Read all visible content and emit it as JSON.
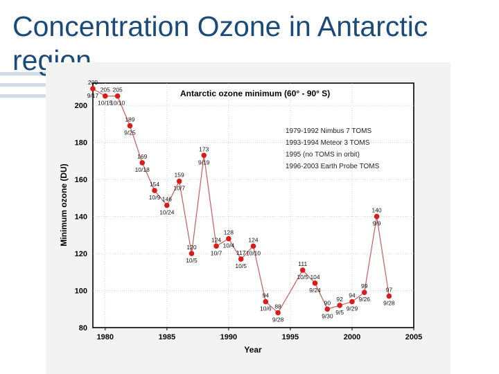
{
  "slide": {
    "title": "Concentration Ozone in Antarctic region"
  },
  "colors": {
    "title": "#1a4a7a",
    "marker": "#d81b1b",
    "line": "#d05a5a",
    "axis": "#000000",
    "grid": "#bbbbbb"
  },
  "chart_data": {
    "type": "line",
    "title": "Antarctic ozone minimum (60° - 90° S)",
    "xlabel": "Year",
    "ylabel": "Minimum ozone (DU)",
    "xlim": [
      1979,
      2005
    ],
    "ylim": [
      80,
      212
    ],
    "xticks": [
      1980,
      1985,
      1990,
      1995,
      2000,
      2005
    ],
    "yticks": [
      80,
      100,
      120,
      140,
      160,
      180,
      200
    ],
    "grid": true,
    "legend": [
      "1979-1992 Nimbus 7 TOMS",
      "1993-1994 Meteor 3 TOMS",
      "1995 (no TOMS in orbit)",
      "1996-2003 Earth Probe TOMS"
    ],
    "points": [
      {
        "year": 1979,
        "value": 209,
        "label": "209",
        "date": "9/17"
      },
      {
        "year": 1980,
        "value": 205,
        "label": "205",
        "date": "10/15"
      },
      {
        "year": 1981,
        "value": 205,
        "label": "205",
        "date": "10/10"
      },
      {
        "year": 1982,
        "value": 189,
        "label": "189",
        "date": "9/25"
      },
      {
        "year": 1983,
        "value": 169,
        "label": "169",
        "date": "10/18"
      },
      {
        "year": 1984,
        "value": 154,
        "label": "154",
        "date": "10/9"
      },
      {
        "year": 1985,
        "value": 146,
        "label": "146",
        "date": "10/24"
      },
      {
        "year": 1986,
        "value": 159,
        "label": "159",
        "date": "10/7"
      },
      {
        "year": 1987,
        "value": 120,
        "label": "120",
        "date": "10/5"
      },
      {
        "year": 1988,
        "value": 173,
        "label": "173",
        "date": "9/19"
      },
      {
        "year": 1989,
        "value": 124,
        "label": "124",
        "date": "10/7"
      },
      {
        "year": 1990,
        "value": 128,
        "label": "128",
        "date": "10/4"
      },
      {
        "year": 1991,
        "value": 117,
        "label": "117",
        "date": "10/5"
      },
      {
        "year": 1992,
        "value": 124,
        "label": "124",
        "date": "10/10"
      },
      {
        "year": 1993,
        "value": 94,
        "label": "94",
        "date": "10/6"
      },
      {
        "year": 1994,
        "value": 88,
        "label": "88",
        "date": "9/28"
      },
      {
        "year": 1996,
        "value": 111,
        "label": "111",
        "date": "10/5"
      },
      {
        "year": 1997,
        "value": 104,
        "label": "104",
        "date": "9/24"
      },
      {
        "year": 1998,
        "value": 90,
        "label": "90",
        "date": "9/30"
      },
      {
        "year": 1999,
        "value": 92,
        "label": "92",
        "date": "9/5"
      },
      {
        "year": 2000,
        "value": 94,
        "label": "94",
        "date": "9/29"
      },
      {
        "year": 2001,
        "value": 99,
        "label": "99",
        "date": "9/26"
      },
      {
        "year": 2002,
        "value": 140,
        "label": "140",
        "date": "9/9"
      },
      {
        "year": 2003,
        "value": 97,
        "label": "97",
        "date": "9/28"
      }
    ]
  }
}
